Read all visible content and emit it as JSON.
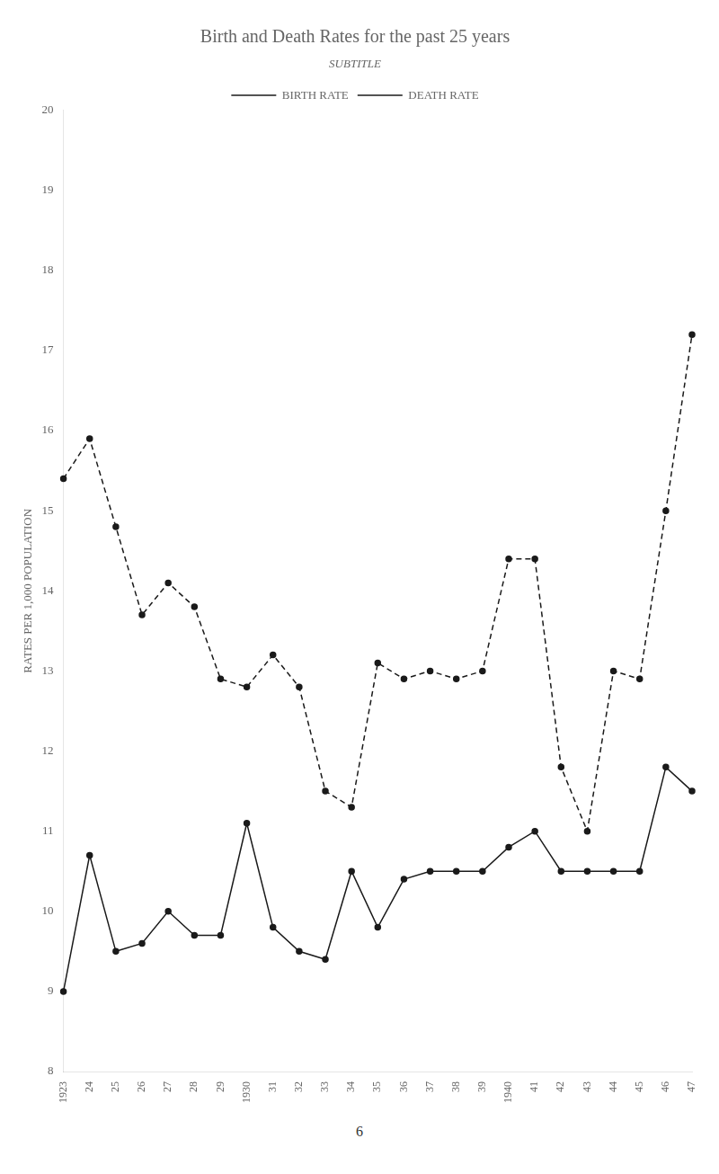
{
  "chart_data": {
    "type": "line",
    "title": "Birth and Death Rates for the past 25 years",
    "subtitle": "SUBTITLE",
    "ylabel": "RATES PER 1,000 POPULATION",
    "annotations": [
      "6"
    ],
    "categories": [
      "1923",
      "24",
      "25",
      "26",
      "27",
      "28",
      "29",
      "1930",
      "31",
      "32",
      "33",
      "34",
      "35",
      "36",
      "37",
      "38",
      "39",
      "1940",
      "41",
      "42",
      "43",
      "44",
      "45",
      "46",
      "47"
    ],
    "series": [
      {
        "name": "BIRTH RATE",
        "color": "#1a1a1a",
        "line_style": "dashed",
        "marker": "circle",
        "values": [
          15.4,
          15.9,
          14.8,
          13.7,
          14.1,
          13.8,
          12.9,
          12.8,
          13.2,
          12.8,
          11.5,
          11.3,
          13.1,
          12.9,
          13.0,
          12.9,
          13.0,
          14.4,
          14.4,
          11.8,
          11.0,
          13.0,
          12.9,
          15.0,
          17.2
        ]
      },
      {
        "name": "DEATH RATE",
        "color": "#1a1a1a",
        "line_style": "solid",
        "marker": "circle",
        "values": [
          9.0,
          10.7,
          9.5,
          9.6,
          10.0,
          9.7,
          9.7,
          11.1,
          9.8,
          9.5,
          9.4,
          10.5,
          9.8,
          10.4,
          10.5,
          10.5,
          10.5,
          10.8,
          11.0,
          10.5,
          10.5,
          10.5,
          10.5,
          11.8,
          11.5
        ]
      }
    ],
    "ylim": [
      8,
      20
    ],
    "yticks": [
      8,
      9,
      10,
      11,
      12,
      13,
      14,
      15,
      16,
      17,
      18,
      19,
      20
    ],
    "grid": false,
    "legend": "upper center"
  }
}
